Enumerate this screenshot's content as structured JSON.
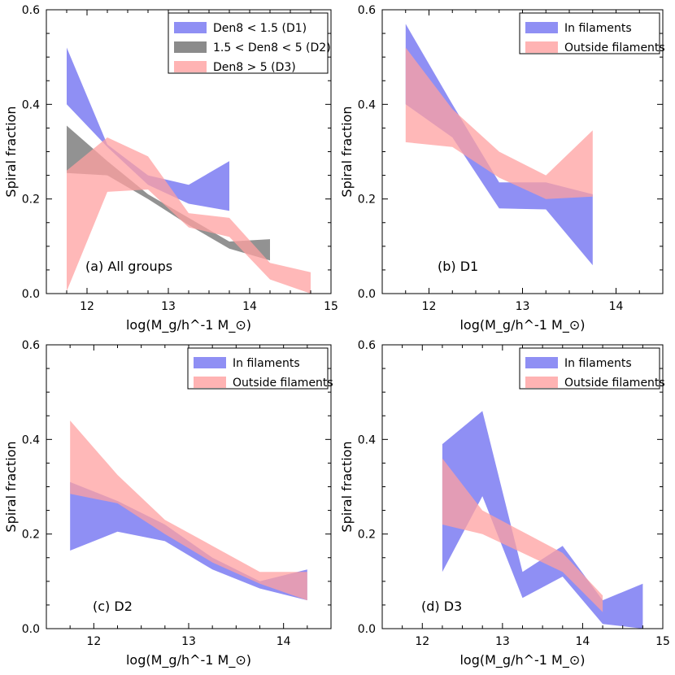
{
  "chart_data": [
    {
      "id": "a",
      "type": "area",
      "panel_label": "(a) All groups",
      "xlabel": "log(M_g/h^-1 M_⊙)",
      "ylabel": "Spiral fraction",
      "xlim": [
        11.5,
        15
      ],
      "ylim": [
        0,
        0.6
      ],
      "xticks": [
        12,
        13,
        14,
        15
      ],
      "yticks": [
        0.0,
        0.2,
        0.4,
        0.6
      ],
      "legend_position": "top-right",
      "series": [
        {
          "name": "Den8 < 1.5 (D1)",
          "color": "#7b7bf2",
          "x": [
            11.75,
            12.25,
            12.75,
            13.25,
            13.75
          ],
          "upper": [
            0.52,
            0.315,
            0.25,
            0.23,
            0.28
          ],
          "lower": [
            0.4,
            0.31,
            0.23,
            0.19,
            0.175
          ]
        },
        {
          "name": "1.5 < Den8 < 5 (D2)",
          "color": "#6e6e6e",
          "x": [
            11.75,
            12.25,
            12.75,
            13.25,
            13.75,
            14.25
          ],
          "upper": [
            0.355,
            0.28,
            0.21,
            0.16,
            0.11,
            0.115
          ],
          "lower": [
            0.255,
            0.25,
            0.2,
            0.145,
            0.095,
            0.07
          ]
        },
        {
          "name": "Den8 > 5 (D3)",
          "color": "#ffa0a0",
          "x": [
            11.75,
            12.25,
            12.75,
            13.25,
            13.75,
            14.25,
            14.75
          ],
          "upper": [
            0.26,
            0.33,
            0.29,
            0.17,
            0.16,
            0.065,
            0.045
          ],
          "lower": [
            0.005,
            0.215,
            0.22,
            0.14,
            0.12,
            0.03,
            0.0
          ]
        }
      ]
    },
    {
      "id": "b",
      "type": "area",
      "panel_label": "(b) D1",
      "xlabel": "log(M_g/h^-1 M_⊙)",
      "ylabel": "Spiral fraction",
      "xlim": [
        11.5,
        14.5
      ],
      "ylim": [
        0,
        0.6
      ],
      "xticks": [
        12,
        13,
        14
      ],
      "yticks": [
        0.0,
        0.2,
        0.4,
        0.6
      ],
      "legend_position": "top-right",
      "series": [
        {
          "name": "In filaments",
          "color": "#7b7bf2",
          "x": [
            11.75,
            12.25,
            12.75,
            13.25,
            13.75
          ],
          "upper": [
            0.57,
            0.4,
            0.235,
            0.235,
            0.21
          ],
          "lower": [
            0.4,
            0.33,
            0.18,
            0.178,
            0.06
          ]
        },
        {
          "name": "Outside filaments",
          "color": "#ffa0a0",
          "x": [
            11.75,
            12.25,
            12.75,
            13.25,
            13.75
          ],
          "upper": [
            0.52,
            0.39,
            0.3,
            0.25,
            0.345
          ],
          "lower": [
            0.32,
            0.31,
            0.245,
            0.2,
            0.205
          ]
        }
      ]
    },
    {
      "id": "c",
      "type": "area",
      "panel_label": "(c) D2",
      "xlabel": "log(M_g/h^-1 M_⊙)",
      "ylabel": "Spiral fraction",
      "xlim": [
        11.5,
        14.5
      ],
      "ylim": [
        0,
        0.6
      ],
      "xticks": [
        12,
        13,
        14
      ],
      "yticks": [
        0.0,
        0.2,
        0.4,
        0.6
      ],
      "legend_position": "top-right",
      "series": [
        {
          "name": "In filaments",
          "color": "#7b7bf2",
          "x": [
            11.75,
            12.25,
            12.75,
            13.25,
            13.75,
            14.25
          ],
          "upper": [
            0.31,
            0.27,
            0.22,
            0.15,
            0.1,
            0.125
          ],
          "lower": [
            0.165,
            0.205,
            0.185,
            0.125,
            0.085,
            0.06
          ]
        },
        {
          "name": "Outside filaments",
          "color": "#ffa0a0",
          "x": [
            11.75,
            12.25,
            12.75,
            13.25,
            13.75,
            14.25
          ],
          "upper": [
            0.44,
            0.325,
            0.23,
            0.175,
            0.12,
            0.12
          ],
          "lower": [
            0.285,
            0.265,
            0.2,
            0.14,
            0.095,
            0.06
          ]
        }
      ]
    },
    {
      "id": "d",
      "type": "area",
      "panel_label": "(d) D3",
      "xlabel": "log(M_g/h^-1 M_⊙)",
      "ylabel": "Spiral fraction",
      "xlim": [
        11.5,
        15
      ],
      "ylim": [
        0,
        0.6
      ],
      "xticks": [
        12,
        13,
        14,
        15
      ],
      "yticks": [
        0.0,
        0.2,
        0.4,
        0.6
      ],
      "legend_position": "top-right",
      "series": [
        {
          "name": "In filaments",
          "color": "#7b7bf2",
          "x": [
            12.25,
            12.75,
            13.25,
            13.75,
            14.25,
            14.75
          ],
          "upper": [
            0.39,
            0.46,
            0.12,
            0.175,
            0.06,
            0.095
          ],
          "lower": [
            0.12,
            0.28,
            0.065,
            0.11,
            0.01,
            0.0
          ]
        },
        {
          "name": "Outside filaments",
          "color": "#ffa0a0",
          "x": [
            12.25,
            12.75,
            13.25,
            13.75,
            14.25
          ],
          "upper": [
            0.36,
            0.25,
            0.205,
            0.16,
            0.07
          ],
          "lower": [
            0.22,
            0.2,
            0.16,
            0.12,
            0.035
          ]
        }
      ]
    }
  ]
}
